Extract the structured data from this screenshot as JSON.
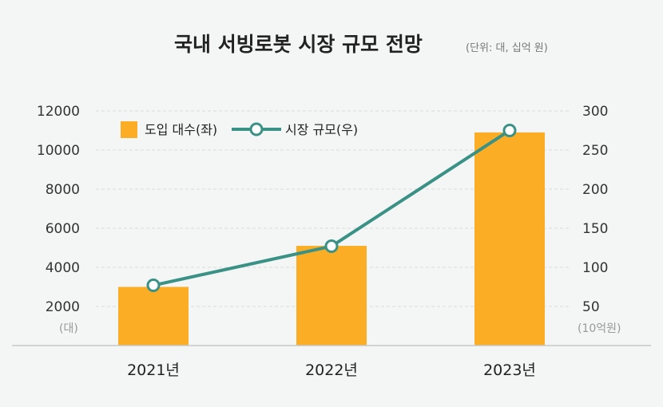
{
  "chart_data": {
    "type": "bar",
    "title": "국내 서빙로봇 시장 규모 전망",
    "subtitle": "(단위: 대, 십억 원)",
    "categories": [
      "2021년",
      "2022년",
      "2023년"
    ],
    "series": [
      {
        "name": "도입 대수(좌)",
        "type": "bar",
        "axis": "left",
        "values": [
          3000,
          5100,
          10900
        ],
        "color": "#fbae25"
      },
      {
        "name": "시장 규모(우)",
        "type": "line",
        "axis": "right",
        "values": [
          77,
          127,
          275
        ],
        "color": "#3a9186"
      }
    ],
    "y_left": {
      "ticks": [
        "2000",
        "4000",
        "6000",
        "8000",
        "10000",
        "12000"
      ],
      "unit": "(대)",
      "ylim": [
        0,
        12000
      ]
    },
    "y_right": {
      "ticks": [
        "50",
        "100",
        "150",
        "200",
        "250",
        "300"
      ],
      "unit": "(10억원)",
      "ylim": [
        0,
        300
      ]
    },
    "legend_position": "top-left",
    "grid": true
  }
}
